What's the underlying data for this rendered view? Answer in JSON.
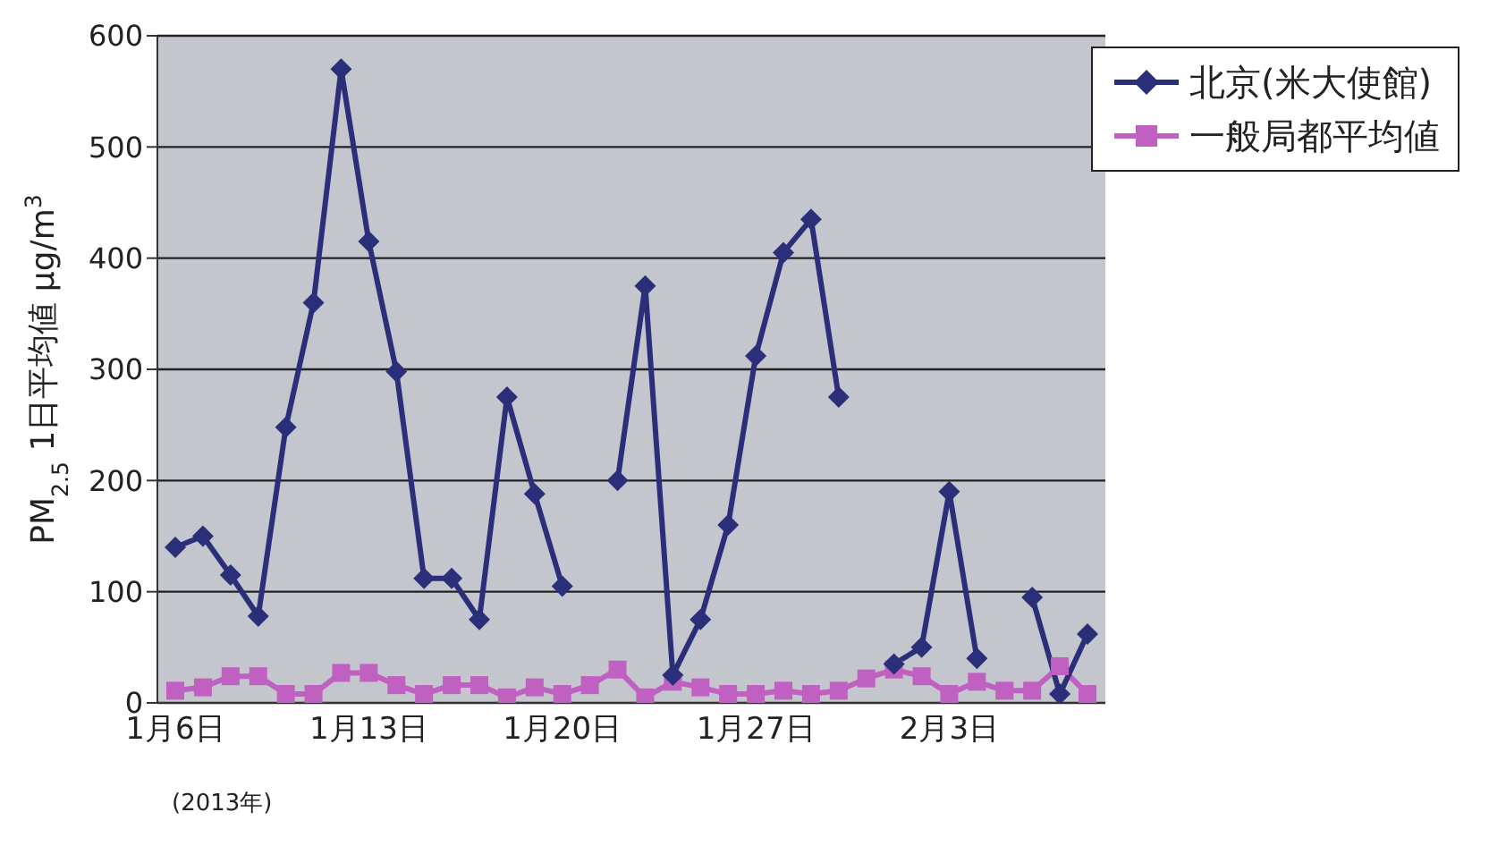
{
  "chart_data": {
    "type": "line",
    "ylabel": "PM$_{2.5}$ 1日平均値 μg/m$^{3}$",
    "categories": [
      "1月6日",
      null,
      null,
      null,
      null,
      null,
      null,
      "1月13日",
      null,
      null,
      null,
      null,
      null,
      null,
      "1月20日",
      null,
      null,
      null,
      null,
      null,
      null,
      "1月27日",
      null,
      null,
      null,
      null,
      null,
      null,
      "2月3日",
      null,
      null,
      null,
      null,
      null
    ],
    "series": [
      {
        "name": "北京(米大使館)",
        "color": "#2b2f7a",
        "marker": "diamond",
        "values": [
          140,
          150,
          115,
          78,
          248,
          360,
          570,
          415,
          298,
          112,
          112,
          75,
          275,
          188,
          105,
          null,
          200,
          375,
          25,
          75,
          160,
          312,
          405,
          435,
          275,
          null,
          35,
          50,
          190,
          40,
          null,
          95,
          8,
          62
        ]
      },
      {
        "name": "一般局都平均値",
        "color": "#c060c0",
        "marker": "square",
        "values": [
          11,
          14,
          24,
          24,
          8,
          8,
          27,
          27,
          16,
          8,
          16,
          16,
          5,
          14,
          8,
          16,
          30,
          5,
          19,
          14,
          8,
          8,
          11,
          8,
          11,
          22,
          30,
          24,
          8,
          19,
          11,
          11,
          33,
          8
        ]
      }
    ],
    "ylim": [
      0,
      600
    ],
    "yticks": [
      0,
      100,
      200,
      300,
      400,
      500,
      600
    ],
    "grid": "y",
    "legend": "top right",
    "annotations": [
      "(2013年)"
    ]
  }
}
